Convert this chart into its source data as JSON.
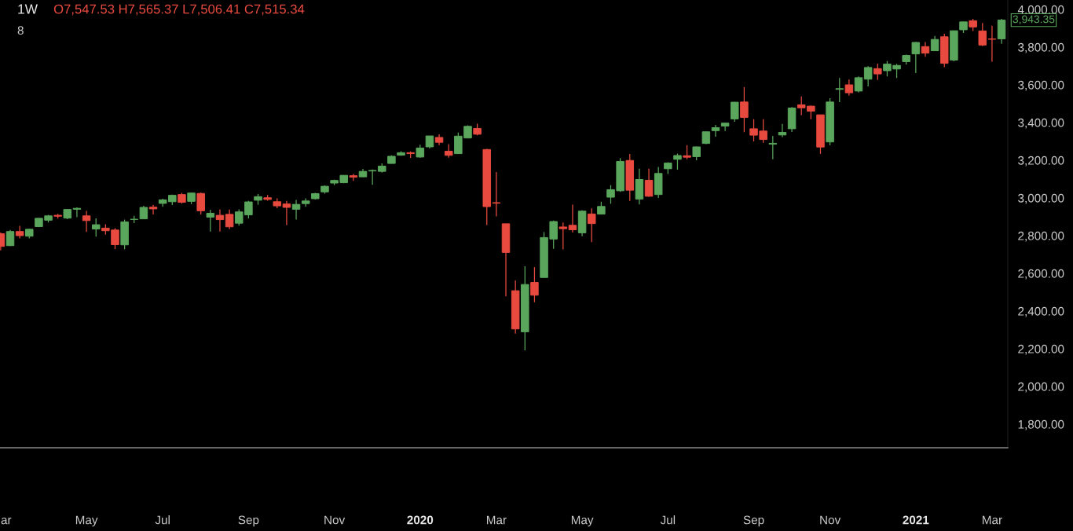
{
  "chart_data": {
    "type": "candlestick",
    "title": "1W",
    "annotations": [
      "O7,547.53 H7,565.37 L7,506.41 C7,515.34",
      "8",
      {
        "text": "3,943.35",
        "x": "2021-03-08",
        "y": 3943.35
      }
    ],
    "x": [
      "2019-03-04",
      "2019-03-11",
      "2019-03-18",
      "2019-03-25",
      "2019-04-01",
      "2019-04-08",
      "2019-04-15",
      "2019-04-22",
      "2019-04-29",
      "2019-05-06",
      "2019-05-13",
      "2019-05-20",
      "2019-05-27",
      "2019-06-03",
      "2019-06-10",
      "2019-06-17",
      "2019-06-24",
      "2019-07-01",
      "2019-07-08",
      "2019-07-15",
      "2019-07-22",
      "2019-07-29",
      "2019-08-05",
      "2019-08-12",
      "2019-08-19",
      "2019-08-26",
      "2019-09-02",
      "2019-09-09",
      "2019-09-16",
      "2019-09-23",
      "2019-09-30",
      "2019-10-07",
      "2019-10-14",
      "2019-10-21",
      "2019-10-28",
      "2019-11-04",
      "2019-11-11",
      "2019-11-18",
      "2019-11-25",
      "2019-12-02",
      "2019-12-09",
      "2019-12-16",
      "2019-12-23",
      "2019-12-30",
      "2020-01-06",
      "2020-01-13",
      "2020-01-20",
      "2020-01-27",
      "2020-02-03",
      "2020-02-10",
      "2020-02-17",
      "2020-02-24",
      "2020-03-02",
      "2020-03-09",
      "2020-03-16",
      "2020-03-23",
      "2020-03-30",
      "2020-04-06",
      "2020-04-13",
      "2020-04-20",
      "2020-04-27",
      "2020-05-04",
      "2020-05-11",
      "2020-05-18",
      "2020-05-25",
      "2020-06-01",
      "2020-06-08",
      "2020-06-15",
      "2020-06-22",
      "2020-06-29",
      "2020-07-06",
      "2020-07-13",
      "2020-07-20",
      "2020-07-27",
      "2020-08-03",
      "2020-08-10",
      "2020-08-17",
      "2020-08-24",
      "2020-08-31",
      "2020-09-07",
      "2020-09-14",
      "2020-09-21",
      "2020-09-28",
      "2020-10-05",
      "2020-10-12",
      "2020-10-19",
      "2020-10-26",
      "2020-11-02",
      "2020-11-09",
      "2020-11-16",
      "2020-11-23",
      "2020-11-30",
      "2020-12-07",
      "2020-12-14",
      "2020-12-21",
      "2020-12-28",
      "2021-01-04",
      "2021-01-11",
      "2021-01-18",
      "2021-01-25",
      "2021-02-01",
      "2021-02-08",
      "2021-02-15",
      "2021-02-22",
      "2021-03-01",
      "2021-03-08"
    ],
    "ohlc": [
      [
        2810,
        2817,
        2722,
        2743
      ],
      [
        2747,
        2830,
        2745,
        2822
      ],
      [
        2822,
        2852,
        2785,
        2800
      ],
      [
        2797,
        2836,
        2785,
        2834
      ],
      [
        2848,
        2893,
        2845,
        2892
      ],
      [
        2882,
        2910,
        2870,
        2905
      ],
      [
        2908,
        2916,
        2891,
        2903
      ],
      [
        2893,
        2940,
        2888,
        2939
      ],
      [
        2940,
        2950,
        2898,
        2945
      ],
      [
        2905,
        2931,
        2820,
        2880
      ],
      [
        2835,
        2892,
        2795,
        2858
      ],
      [
        2840,
        2860,
        2805,
        2826
      ],
      [
        2830,
        2840,
        2729,
        2752
      ],
      [
        2751,
        2885,
        2728,
        2873
      ],
      [
        2886,
        2905,
        2867,
        2887
      ],
      [
        2889,
        2958,
        2887,
        2950
      ],
      [
        2951,
        2964,
        2912,
        2942
      ],
      [
        2971,
        2996,
        2953,
        2990
      ],
      [
        2980,
        3018,
        2963,
        3014
      ],
      [
        3018,
        3027,
        2970,
        2977
      ],
      [
        2982,
        3028,
        2967,
        3026
      ],
      [
        3024,
        3028,
        2912,
        2932
      ],
      [
        2898,
        2938,
        2822,
        2919
      ],
      [
        2908,
        2939,
        2822,
        2885
      ],
      [
        2913,
        2939,
        2834,
        2847
      ],
      [
        2866,
        2940,
        2853,
        2926
      ],
      [
        2910,
        2985,
        2891,
        2979
      ],
      [
        2988,
        3021,
        2964,
        3007
      ],
      [
        3001,
        3016,
        2985,
        2992
      ],
      [
        2980,
        2998,
        2946,
        2958
      ],
      [
        2968,
        2984,
        2856,
        2950
      ],
      [
        2940,
        2990,
        2885,
        2966
      ],
      [
        2970,
        2998,
        2953,
        2984
      ],
      [
        2996,
        3027,
        2992,
        3023
      ],
      [
        3032,
        3066,
        3023,
        3062
      ],
      [
        3079,
        3097,
        3068,
        3093
      ],
      [
        3081,
        3121,
        3078,
        3120
      ],
      [
        3118,
        3127,
        3091,
        3110
      ],
      [
        3112,
        3154,
        3110,
        3141
      ],
      [
        3143,
        3151,
        3070,
        3146
      ],
      [
        3141,
        3183,
        3134,
        3169
      ],
      [
        3183,
        3226,
        3183,
        3221
      ],
      [
        3227,
        3248,
        3224,
        3240
      ],
      [
        3240,
        3247,
        3212,
        3235
      ],
      [
        3217,
        3282,
        3214,
        3265
      ],
      [
        3271,
        3329,
        3262,
        3329
      ],
      [
        3321,
        3338,
        3280,
        3295
      ],
      [
        3248,
        3285,
        3214,
        3226
      ],
      [
        3235,
        3347,
        3235,
        3328
      ],
      [
        3318,
        3385,
        3316,
        3380
      ],
      [
        3369,
        3394,
        3332,
        3338
      ],
      [
        3257,
        3260,
        2856,
        2954
      ],
      [
        2975,
        3137,
        2902,
        2972
      ],
      [
        2863,
        2863,
        2478,
        2711
      ],
      [
        2508,
        2563,
        2280,
        2305
      ],
      [
        2290,
        2638,
        2192,
        2541
      ],
      [
        2552,
        2633,
        2447,
        2484
      ],
      [
        2578,
        2819,
        2578,
        2790
      ],
      [
        2782,
        2880,
        2730,
        2875
      ],
      [
        2846,
        2870,
        2727,
        2837
      ],
      [
        2855,
        2965,
        2817,
        2831
      ],
      [
        2815,
        2934,
        2797,
        2930
      ],
      [
        2915,
        2945,
        2766,
        2864
      ],
      [
        2914,
        2980,
        2913,
        2955
      ],
      [
        3004,
        3068,
        2969,
        3044
      ],
      [
        3038,
        3211,
        3032,
        3194
      ],
      [
        3199,
        3233,
        2984,
        3041
      ],
      [
        2994,
        3155,
        2966,
        3098
      ],
      [
        3094,
        3155,
        3006,
        3009
      ],
      [
        3018,
        3165,
        3000,
        3130
      ],
      [
        3155,
        3190,
        3127,
        3185
      ],
      [
        3205,
        3235,
        3150,
        3225
      ],
      [
        3224,
        3280,
        3205,
        3216
      ],
      [
        3219,
        3272,
        3200,
        3271
      ],
      [
        3289,
        3352,
        3285,
        3351
      ],
      [
        3357,
        3387,
        3325,
        3373
      ],
      [
        3381,
        3399,
        3355,
        3397
      ],
      [
        3419,
        3509,
        3404,
        3508
      ],
      [
        3509,
        3588,
        3349,
        3427
      ],
      [
        3367,
        3418,
        3300,
        3333
      ],
      [
        3355,
        3418,
        3293,
        3310
      ],
      [
        3285,
        3329,
        3205,
        3290
      ],
      [
        3334,
        3393,
        3323,
        3348
      ],
      [
        3367,
        3482,
        3350,
        3477
      ],
      [
        3494,
        3539,
        3439,
        3478
      ],
      [
        3487,
        3490,
        3418,
        3460
      ],
      [
        3441,
        3441,
        3234,
        3270
      ],
      [
        3297,
        3529,
        3279,
        3509
      ],
      [
        3576,
        3636,
        3508,
        3580
      ],
      [
        3600,
        3628,
        3543,
        3558
      ],
      [
        3567,
        3645,
        3559,
        3638
      ],
      [
        3630,
        3699,
        3592,
        3692
      ],
      [
        3686,
        3712,
        3626,
        3658
      ],
      [
        3675,
        3726,
        3645,
        3710
      ],
      [
        3684,
        3711,
        3636,
        3703
      ],
      [
        3723,
        3760,
        3707,
        3756
      ],
      [
        3764,
        3827,
        3663,
        3825
      ],
      [
        3803,
        3827,
        3749,
        3768
      ],
      [
        3781,
        3859,
        3781,
        3841
      ],
      [
        3855,
        3871,
        3694,
        3714
      ],
      [
        3731,
        3887,
        3725,
        3887
      ],
      [
        3892,
        3935,
        3875,
        3934
      ],
      [
        3940,
        3950,
        3885,
        3907
      ],
      [
        3886,
        3928,
        3805,
        3811
      ],
      [
        3843,
        3914,
        3723,
        3842
      ],
      [
        3844,
        3950,
        3818,
        3943.35
      ]
    ],
    "colors": [
      "#e84a3f",
      "#5aa65c",
      "#e84a3f",
      "#5aa65c",
      "#5aa65c",
      "#5aa65c",
      "#e84a3f",
      "#5aa65c",
      "#5aa65c",
      "#e84a3f",
      "#5aa65c",
      "#e84a3f",
      "#e84a3f",
      "#5aa65c",
      "#5aa65c",
      "#5aa65c",
      "#e84a3f",
      "#5aa65c",
      "#5aa65c",
      "#e84a3f",
      "#5aa65c",
      "#e84a3f",
      "#5aa65c",
      "#e84a3f",
      "#e84a3f",
      "#5aa65c",
      "#5aa65c",
      "#5aa65c",
      "#e84a3f",
      "#e84a3f",
      "#e84a3f",
      "#5aa65c",
      "#5aa65c",
      "#5aa65c",
      "#5aa65c",
      "#5aa65c",
      "#5aa65c",
      "#e84a3f",
      "#5aa65c",
      "#5aa65c",
      "#5aa65c",
      "#5aa65c",
      "#5aa65c",
      "#e84a3f",
      "#5aa65c",
      "#5aa65c",
      "#e84a3f",
      "#e84a3f",
      "#5aa65c",
      "#5aa65c",
      "#e84a3f",
      "#e84a3f",
      "#e84a3f",
      "#e84a3f",
      "#e84a3f",
      "#5aa65c",
      "#e84a3f",
      "#5aa65c",
      "#5aa65c",
      "#e84a3f",
      "#e84a3f",
      "#5aa65c",
      "#e84a3f",
      "#5aa65c",
      "#5aa65c",
      "#5aa65c",
      "#e84a3f",
      "#5aa65c",
      "#e84a3f",
      "#5aa65c",
      "#5aa65c",
      "#5aa65c",
      "#e84a3f",
      "#5aa65c",
      "#5aa65c",
      "#5aa65c",
      "#5aa65c",
      "#5aa65c",
      "#e84a3f",
      "#e84a3f",
      "#e84a3f",
      "#5aa65c",
      "#5aa65c",
      "#5aa65c",
      "#e84a3f",
      "#e84a3f",
      "#e84a3f",
      "#5aa65c",
      "#5aa65c",
      "#e84a3f",
      "#5aa65c",
      "#5aa65c",
      "#e84a3f",
      "#5aa65c",
      "#5aa65c",
      "#5aa65c",
      "#5aa65c",
      "#e84a3f",
      "#5aa65c",
      "#e84a3f",
      "#5aa65c",
      "#5aa65c",
      "#e84a3f",
      "#e84a3f",
      "#e84a3f",
      "#5aa65c"
    ],
    "xlim": [
      "2019-03-03T12:00",
      "2021-03-12T14:00"
    ],
    "ylim": [
      1675,
      4050
    ],
    "xticks": [
      {
        "value": "2019-03-08",
        "label": "ar"
      },
      {
        "value": "2019-05-06",
        "label": "May"
      },
      {
        "value": "2019-07-01",
        "label": "Jul"
      },
      {
        "value": "2019-09-02",
        "label": "Sep"
      },
      {
        "value": "2019-11-04",
        "label": "Nov"
      },
      {
        "value": "2020-01-06",
        "label": "2020"
      },
      {
        "value": "2020-03-02",
        "label": "Mar"
      },
      {
        "value": "2020-05-04",
        "label": "May"
      },
      {
        "value": "2020-07-06",
        "label": "Jul"
      },
      {
        "value": "2020-09-07",
        "label": "Sep"
      },
      {
        "value": "2020-11-02",
        "label": "Nov"
      },
      {
        "value": "2021-01-04",
        "label": "2021"
      },
      {
        "value": "2021-03-01",
        "label": "Mar"
      }
    ],
    "yticks": [
      {
        "value": 1800,
        "label": "1,800.00"
      },
      {
        "value": 2000,
        "label": "2,000.00"
      },
      {
        "value": 2200,
        "label": "2,200.00"
      },
      {
        "value": 2400,
        "label": "2,400.00"
      },
      {
        "value": 2600,
        "label": "2,600.00"
      },
      {
        "value": 2800,
        "label": "2,800.00"
      },
      {
        "value": 3000,
        "label": "3,000.00"
      },
      {
        "value": 3200,
        "label": "3,200.00"
      },
      {
        "value": 3400,
        "label": "3,400.00"
      },
      {
        "value": 3600,
        "label": "3,600.00"
      },
      {
        "value": 3800,
        "label": "3,800.00"
      },
      {
        "value": 4000,
        "label": "4,000.00"
      }
    ]
  }
}
